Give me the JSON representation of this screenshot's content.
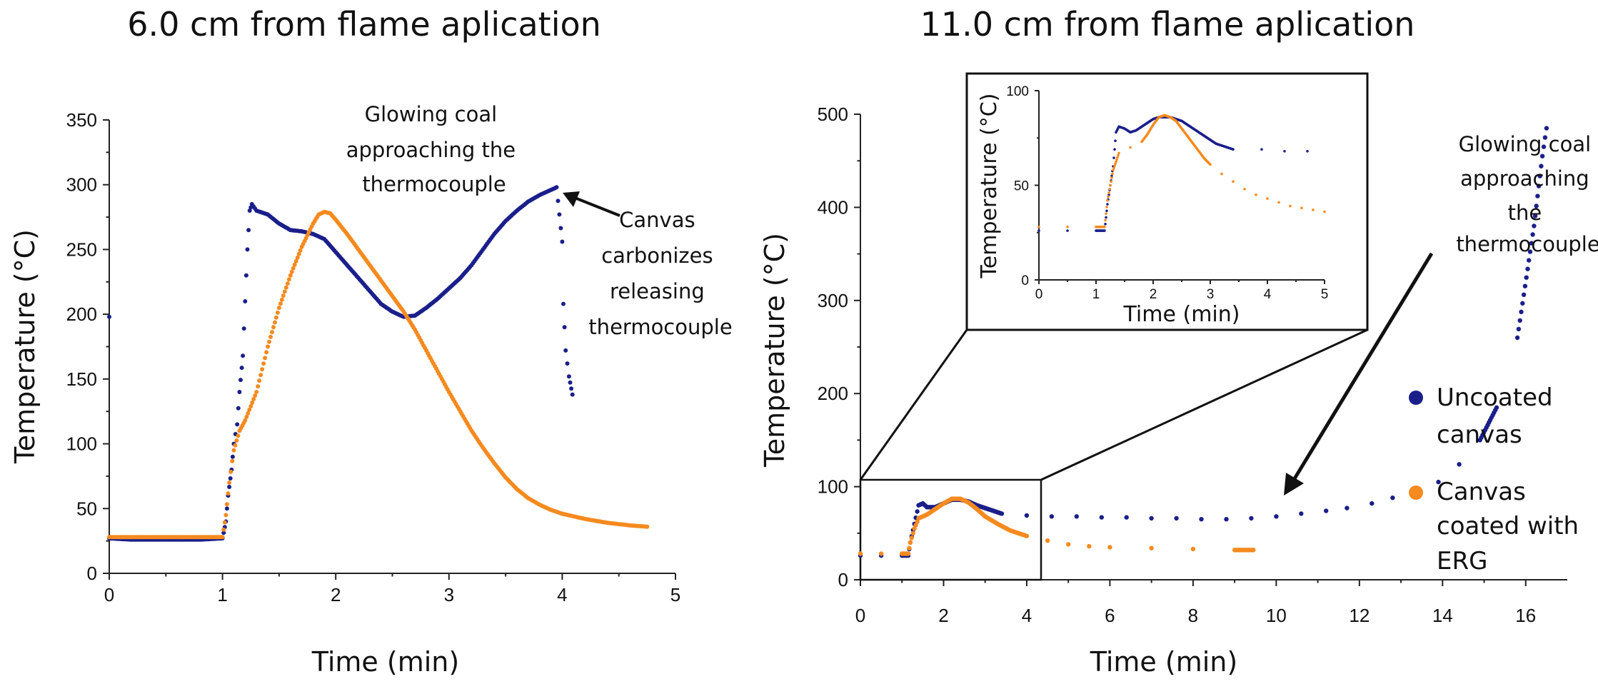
{
  "colors": {
    "uncoated": "#1a1f8a",
    "coated": "#f58a1f"
  },
  "legend": {
    "uncoated_lines": [
      "Uncoated",
      "canvas"
    ],
    "coated_lines": [
      "Canvas",
      "coated with",
      "ERG"
    ]
  },
  "chart_data": [
    {
      "type": "scatter",
      "title": "6.0 cm from flame aplication",
      "xlabel": "Time (min)",
      "ylabel": "Temperature (°C)",
      "xlim": [
        0,
        5
      ],
      "ylim": [
        0,
        350
      ],
      "xticks": [
        "0",
        "1",
        "2",
        "3",
        "4",
        "5"
      ],
      "yticks": [
        "0",
        "50",
        "100",
        "150",
        "200",
        "250",
        "300",
        "350"
      ],
      "annotations": [
        {
          "lines": [
            "Glowing coal",
            "approaching the",
            "thermocouple"
          ]
        },
        {
          "lines": [
            "Canvas",
            "carbonizes",
            "releasing",
            "thermocouple"
          ]
        }
      ],
      "series": [
        {
          "name": "Uncoated canvas",
          "color": "uncoated",
          "points": [
            [
              0,
              27
            ],
            [
              0.2,
              26
            ],
            [
              0.4,
              26
            ],
            [
              0.6,
              26
            ],
            [
              0.8,
              26
            ],
            [
              1.0,
              27
            ],
            [
              1.03,
              40
            ],
            [
              1.05,
              60
            ],
            [
              1.08,
              80
            ],
            [
              1.1,
              100
            ],
            [
              1.13,
              115
            ],
            [
              1.15,
              140
            ],
            [
              1.18,
              168
            ],
            [
              1.2,
              210
            ],
            [
              1.22,
              250
            ],
            [
              1.24,
              280
            ],
            [
              1.26,
              285
            ],
            [
              1.3,
              280
            ],
            [
              1.4,
              277
            ],
            [
              1.5,
              270
            ],
            [
              1.6,
              265
            ],
            [
              1.7,
              264
            ],
            [
              1.8,
              262
            ],
            [
              1.9,
              258
            ],
            [
              2.0,
              248
            ],
            [
              2.1,
              238
            ],
            [
              2.2,
              228
            ],
            [
              2.3,
              218
            ],
            [
              2.4,
              208
            ],
            [
              2.5,
              202
            ],
            [
              2.6,
              198
            ],
            [
              2.7,
              199
            ],
            [
              2.8,
              205
            ],
            [
              2.9,
              212
            ],
            [
              3.0,
              220
            ],
            [
              3.1,
              228
            ],
            [
              3.2,
              238
            ],
            [
              3.3,
              250
            ],
            [
              3.4,
              262
            ],
            [
              3.5,
              272
            ],
            [
              3.6,
              280
            ],
            [
              3.7,
              287
            ],
            [
              3.8,
              292
            ],
            [
              3.9,
              296
            ],
            [
              3.95,
              298
            ],
            [
              4.0,
              256
            ],
            [
              4.01,
              208
            ],
            [
              4.03,
              172
            ],
            [
              4.06,
              152
            ],
            [
              4.09,
              138
            ],
            [
              0,
              198
            ]
          ]
        },
        {
          "name": "Canvas coated with ERG",
          "color": "coated",
          "points": [
            [
              0,
              28
            ],
            [
              0.2,
              28
            ],
            [
              0.4,
              28
            ],
            [
              0.6,
              28
            ],
            [
              0.8,
              28
            ],
            [
              1.0,
              28
            ],
            [
              1.03,
              45
            ],
            [
              1.06,
              70
            ],
            [
              1.1,
              95
            ],
            [
              1.15,
              110
            ],
            [
              1.2,
              118
            ],
            [
              1.3,
              140
            ],
            [
              1.4,
              175
            ],
            [
              1.5,
              205
            ],
            [
              1.6,
              230
            ],
            [
              1.7,
              252
            ],
            [
              1.8,
              270
            ],
            [
              1.85,
              277
            ],
            [
              1.9,
              279
            ],
            [
              1.95,
              278
            ],
            [
              2.0,
              273
            ],
            [
              2.1,
              262
            ],
            [
              2.2,
              250
            ],
            [
              2.3,
              238
            ],
            [
              2.4,
              226
            ],
            [
              2.5,
              214
            ],
            [
              2.6,
              202
            ],
            [
              2.7,
              188
            ],
            [
              2.8,
              172
            ],
            [
              2.9,
              156
            ],
            [
              3.0,
              140
            ],
            [
              3.1,
              125
            ],
            [
              3.2,
              110
            ],
            [
              3.3,
              97
            ],
            [
              3.4,
              85
            ],
            [
              3.5,
              74
            ],
            [
              3.6,
              65
            ],
            [
              3.7,
              58
            ],
            [
              3.8,
              53
            ],
            [
              3.9,
              49
            ],
            [
              4.0,
              46
            ],
            [
              4.2,
              42
            ],
            [
              4.4,
              39
            ],
            [
              4.6,
              37
            ],
            [
              4.75,
              36
            ]
          ]
        }
      ]
    },
    {
      "type": "scatter",
      "title": "11.0 cm from flame aplication",
      "xlabel": "Time (min)",
      "ylabel": "Temperature (°C)",
      "xlim": [
        0,
        17
      ],
      "ylim": [
        0,
        500
      ],
      "xticks": [
        "0",
        "2",
        "4",
        "6",
        "8",
        "10",
        "12",
        "14",
        "16"
      ],
      "yticks": [
        "0",
        "100",
        "200",
        "300",
        "400",
        "500"
      ],
      "zoom_box": {
        "xlim": [
          0,
          5.3
        ],
        "ylim": [
          0,
          106
        ]
      },
      "annotations": [
        {
          "lines": [
            "Glowing coal",
            "approaching",
            "the",
            "thermocouple"
          ]
        }
      ],
      "series": [
        {
          "name": "Uncoated canvas",
          "color": "uncoated",
          "points": [
            [
              0,
              26
            ],
            [
              0.5,
              26
            ],
            [
              1.0,
              26
            ],
            [
              1.15,
              26
            ],
            [
              1.2,
              40
            ],
            [
              1.3,
              60
            ],
            [
              1.4,
              80
            ],
            [
              1.5,
              82
            ],
            [
              1.6,
              78
            ],
            [
              1.8,
              78
            ],
            [
              2.0,
              82
            ],
            [
              2.2,
              86
            ],
            [
              2.4,
              86
            ],
            [
              2.6,
              84
            ],
            [
              2.8,
              80
            ],
            [
              3.0,
              77
            ],
            [
              3.2,
              74
            ],
            [
              3.4,
              71
            ],
            [
              4.0,
              69
            ],
            [
              4.6,
              68
            ],
            [
              5.2,
              68
            ],
            [
              5.8,
              67
            ],
            [
              6.4,
              67
            ],
            [
              7.0,
              66
            ],
            [
              7.6,
              66
            ],
            [
              8.2,
              65
            ],
            [
              8.8,
              65
            ],
            [
              9.4,
              66
            ],
            [
              10.0,
              68
            ],
            [
              10.6,
              71
            ],
            [
              11.2,
              74
            ],
            [
              11.7,
              77
            ],
            [
              12.3,
              82
            ],
            [
              12.8,
              88
            ],
            [
              13.4,
              96
            ],
            [
              13.9,
              105
            ],
            [
              14.4,
              124
            ],
            [
              14.9,
              150
            ],
            [
              15.3,
              185
            ],
            [
              15.8,
              260
            ],
            [
              16.2,
              380
            ],
            [
              16.4,
              455
            ],
            [
              16.5,
              485
            ]
          ]
        },
        {
          "name": "Canvas coated with ERG",
          "color": "coated",
          "points": [
            [
              0,
              28
            ],
            [
              0.5,
              28
            ],
            [
              1.0,
              28
            ],
            [
              1.15,
              28
            ],
            [
              1.2,
              40
            ],
            [
              1.3,
              55
            ],
            [
              1.4,
              66
            ],
            [
              1.6,
              70
            ],
            [
              1.8,
              76
            ],
            [
              2.0,
              82
            ],
            [
              2.2,
              87
            ],
            [
              2.4,
              87
            ],
            [
              2.6,
              83
            ],
            [
              2.8,
              76
            ],
            [
              3.0,
              68
            ],
            [
              3.3,
              60
            ],
            [
              3.6,
              53
            ],
            [
              4.0,
              47
            ],
            [
              4.5,
              42
            ],
            [
              5.0,
              38
            ],
            [
              5.5,
              36
            ],
            [
              6.0,
              35
            ],
            [
              7.0,
              34
            ],
            [
              8.0,
              33
            ],
            [
              9.0,
              32
            ],
            [
              9.45,
              32
            ]
          ]
        }
      ]
    }
  ],
  "inset": {
    "xlabel": "Time (min)",
    "ylabel": "Temperature (°C)",
    "xlim": [
      0,
      5
    ],
    "ylim": [
      0,
      100
    ],
    "xticks": [
      "0",
      "1",
      "2",
      "3",
      "4",
      "5"
    ],
    "yticks": [
      "0",
      "50",
      "100"
    ],
    "series": [
      {
        "name": "Uncoated canvas",
        "color": "uncoated",
        "points": [
          [
            0,
            26
          ],
          [
            0.5,
            26
          ],
          [
            1.0,
            26
          ],
          [
            1.15,
            26
          ],
          [
            1.2,
            40
          ],
          [
            1.3,
            60
          ],
          [
            1.35,
            78
          ],
          [
            1.4,
            81
          ],
          [
            1.5,
            80
          ],
          [
            1.6,
            78
          ],
          [
            1.7,
            79
          ],
          [
            1.8,
            81
          ],
          [
            1.9,
            83
          ],
          [
            2.0,
            85
          ],
          [
            2.1,
            86
          ],
          [
            2.2,
            86
          ],
          [
            2.3,
            86
          ],
          [
            2.4,
            85
          ],
          [
            2.5,
            84
          ],
          [
            2.6,
            82
          ],
          [
            2.7,
            80
          ],
          [
            2.8,
            78
          ],
          [
            2.9,
            76
          ],
          [
            3.0,
            74
          ],
          [
            3.1,
            72
          ],
          [
            3.2,
            71
          ],
          [
            3.3,
            70
          ],
          [
            3.4,
            69
          ],
          [
            3.9,
            69
          ],
          [
            4.3,
            68
          ],
          [
            4.7,
            68
          ]
        ]
      },
      {
        "name": "Canvas coated with ERG",
        "color": "coated",
        "points": [
          [
            0,
            28
          ],
          [
            0.5,
            28
          ],
          [
            1.0,
            28
          ],
          [
            1.15,
            28
          ],
          [
            1.2,
            42
          ],
          [
            1.3,
            58
          ],
          [
            1.4,
            67
          ],
          [
            1.6,
            70
          ],
          [
            1.8,
            73
          ],
          [
            1.9,
            77
          ],
          [
            2.0,
            82
          ],
          [
            2.1,
            86
          ],
          [
            2.2,
            87
          ],
          [
            2.3,
            86
          ],
          [
            2.4,
            84
          ],
          [
            2.5,
            80
          ],
          [
            2.6,
            76
          ],
          [
            2.7,
            72
          ],
          [
            2.8,
            68
          ],
          [
            2.9,
            64
          ],
          [
            3.0,
            61
          ],
          [
            3.2,
            56
          ],
          [
            3.4,
            52
          ],
          [
            3.6,
            48
          ],
          [
            3.8,
            45
          ],
          [
            4.0,
            43
          ],
          [
            4.2,
            41
          ],
          [
            4.4,
            39
          ],
          [
            4.6,
            38
          ],
          [
            4.8,
            37
          ],
          [
            5.0,
            36
          ]
        ]
      }
    ]
  }
}
